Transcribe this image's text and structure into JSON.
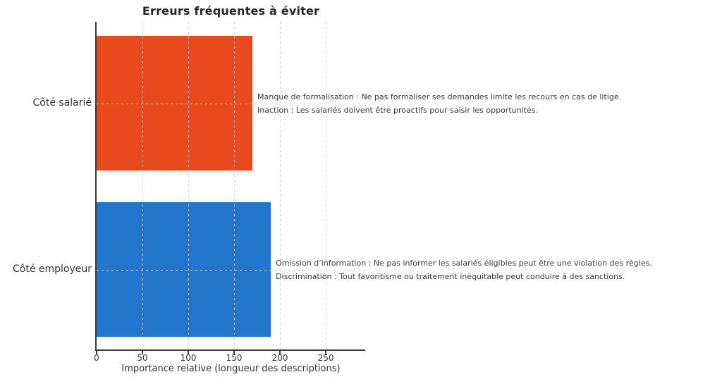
{
  "page": {
    "background": "#ffffff"
  },
  "chart_data": {
    "type": "bar",
    "orientation": "horizontal",
    "title": "Erreurs fréquentes à éviter",
    "xlabel": "Importance relative (longueur des descriptions)",
    "ylabel": "",
    "xlim": [
      0,
      293
    ],
    "xticks": [
      0,
      50,
      100,
      150,
      200,
      250
    ],
    "grid": "dashed-both-axes",
    "legend": "none",
    "categories": [
      "Côté salarié",
      "Côté employeur"
    ],
    "values": [
      170,
      190
    ],
    "colors": [
      "#e8491d",
      "#2277cc"
    ],
    "text_color": "#333333",
    "annotations": [
      {
        "lines": [
          "Manque de formalisation : Ne pas formaliser ses demandes limite les recours en cas de litige.",
          "Inaction : Les salariés doivent être proactifs pour saisir les opportunités."
        ]
      },
      {
        "lines": [
          "Omission d’information : Ne pas informer les salariés éligibles peut être une violation des règles.",
          "Discrimination : Tout favoritisme ou traitement inéquitable peut conduire à des sanctions."
        ]
      }
    ]
  }
}
